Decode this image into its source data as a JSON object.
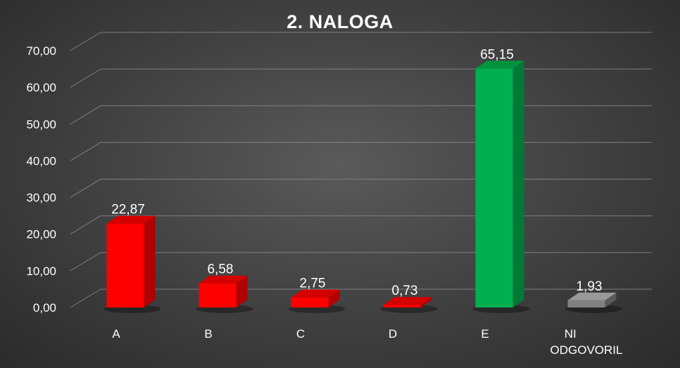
{
  "chart_data": {
    "type": "bar",
    "title": "2. NALOGA",
    "categories": [
      "A",
      "B",
      "C",
      "D",
      "E",
      "NI ODGOVORIL"
    ],
    "category_lines": [
      [
        "A"
      ],
      [
        "B"
      ],
      [
        "C"
      ],
      [
        "D"
      ],
      [
        "E"
      ],
      [
        "NI",
        "ODGOVORIL"
      ]
    ],
    "values": [
      22.87,
      6.58,
      2.75,
      0.73,
      65.15,
      1.93
    ],
    "value_labels": [
      "22,87",
      "6,58",
      "2,75",
      "0,73",
      "65,15",
      "1,93"
    ],
    "ylim": [
      0,
      70
    ],
    "yticks": [
      "0,00",
      "10,00",
      "20,00",
      "30,00",
      "40,00",
      "50,00",
      "60,00",
      "70,00"
    ],
    "ytick_values": [
      0,
      10,
      20,
      30,
      40,
      50,
      60,
      70
    ],
    "grid": true,
    "legend": "none",
    "three_d": true,
    "bar_colors": [
      "#ff0000",
      "#ff0000",
      "#ff0000",
      "#ff0000",
      "#00b050",
      "#808080"
    ],
    "bar_side_colors": [
      "#b00000",
      "#b00000",
      "#b00000",
      "#b00000",
      "#007a36",
      "#5a5a5a"
    ],
    "bar_top_colors": [
      "#d40000",
      "#d40000",
      "#d40000",
      "#d40000",
      "#00923f",
      "#9a9a9a"
    ]
  }
}
